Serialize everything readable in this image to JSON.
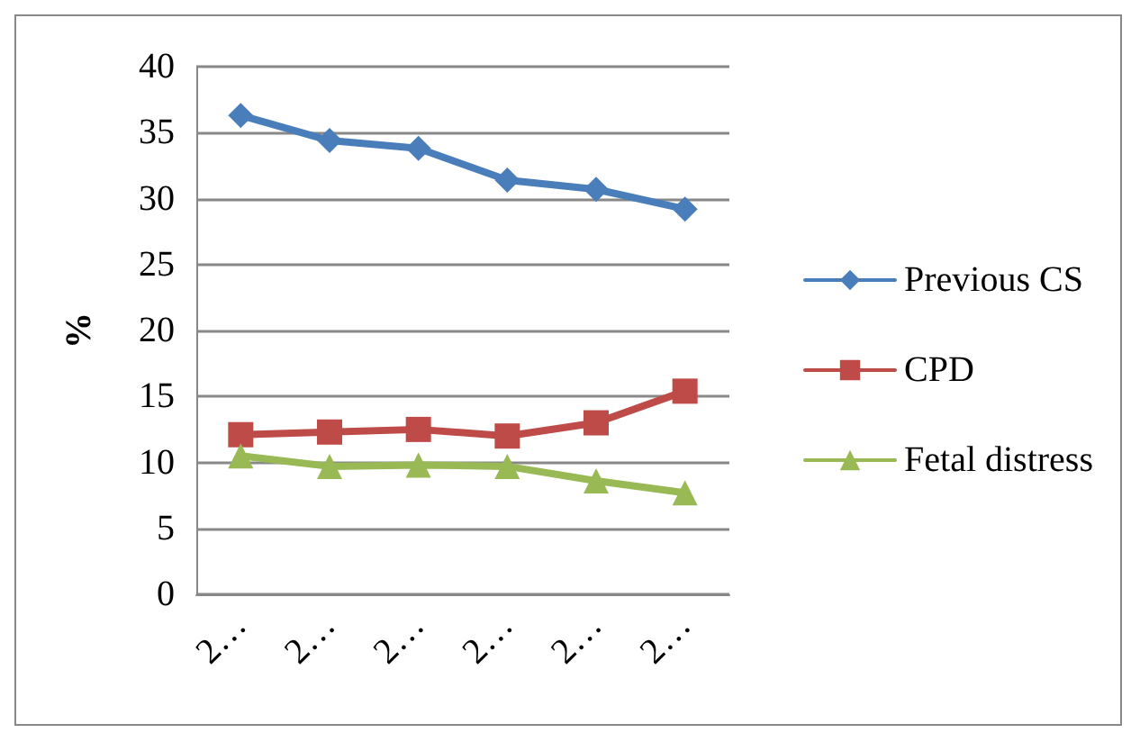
{
  "chart_data": {
    "type": "line",
    "ylabel": "%",
    "categories": [
      "2…",
      "2…",
      "2…",
      "2…",
      "2…",
      "2…"
    ],
    "series": [
      {
        "name": "Previous CS",
        "color": "#4a7ebb",
        "marker": "diamond",
        "values": [
          36.3,
          34.4,
          33.8,
          31.4,
          30.7,
          29.2
        ]
      },
      {
        "name": "CPD",
        "color": "#be4b48",
        "marker": "square",
        "values": [
          12.1,
          12.3,
          12.5,
          12.0,
          13.0,
          15.4
        ]
      },
      {
        "name": "Fetal distress",
        "color": "#98b954",
        "marker": "triangle",
        "values": [
          10.5,
          9.7,
          9.8,
          9.7,
          8.6,
          7.7
        ]
      }
    ],
    "ylim": [
      0,
      40
    ],
    "yticks": [
      0,
      5,
      10,
      15,
      20,
      25,
      30,
      35,
      40
    ],
    "grid": "y",
    "legend": "right"
  }
}
